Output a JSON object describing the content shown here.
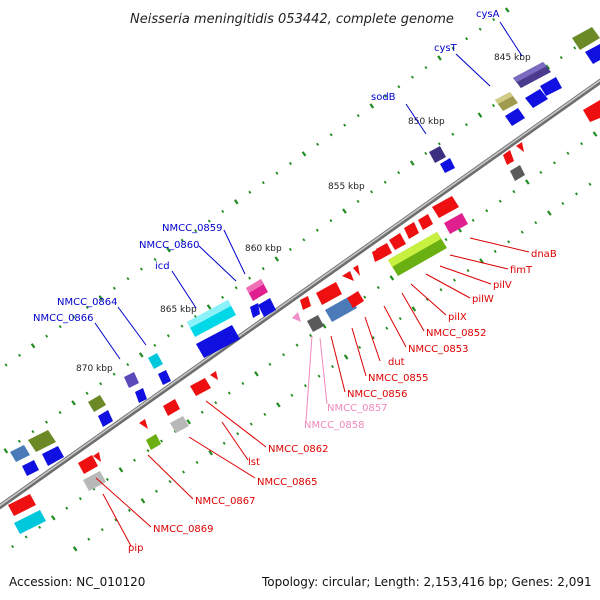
{
  "title": "Neisseria meningitidis 053442, complete genome",
  "footer": {
    "accession": "Accession: NC_010120",
    "stats": "Topology: circular; Length: 2,153,416 bp; Genes: 2,091"
  },
  "colors": {
    "backbone": "#9a9a9a",
    "tick": "#1e8c1e",
    "blue_label": "#0000cc",
    "red_label": "#dd0000",
    "pink_label": "#ee88bb"
  },
  "kbp_labels": [
    "845 kbp",
    "850 kbp",
    "855 kbp",
    "860 kbp",
    "865 kbp",
    "870 kbp"
  ],
  "gene_labels_top": [
    "cysA",
    "cysT",
    "sodB",
    "NMCC_0859",
    "NMCC_0860",
    "icd",
    "NMCC_0864",
    "NMCC_0866"
  ],
  "gene_labels_bottom": [
    "dnaB",
    "fimT",
    "pilV",
    "pilW",
    "pilX",
    "NMCC_0852",
    "NMCC_0853",
    "dut",
    "NMCC_0855",
    "NMCC_0856",
    "NMCC_0857",
    "NMCC_0858",
    "NMCC_0862",
    "lst",
    "NMCC_0865",
    "NMCC_0867",
    "NMCC_0869",
    "pip"
  ]
}
